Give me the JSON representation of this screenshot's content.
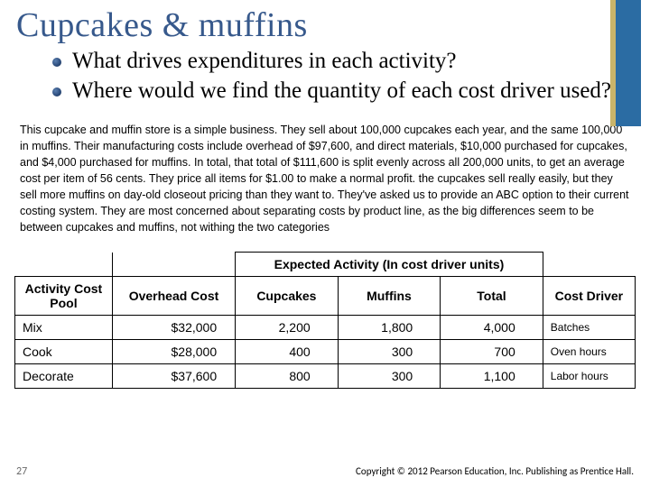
{
  "title": "Cupcakes & muffins",
  "bullets": {
    "b1": "What drives expenditures in each activity?",
    "b2": "Where would we find the quantity of each cost driver used?"
  },
  "paragraph": "This cupcake and muffin store is a simple business. They sell about 100,000 cupcakes each year, and the same 100,000 in muffins. Their manufacturing costs include overhead of $97,600, and direct materials, $10,000 purchased for cupcakes, and $4,000 purchased for muffins. In total, that total of $111,600 is split evenly across all 200,000 units, to get an average cost per item of 56 cents. They price all items for $1.00 to make a normal profit. the cupcakes sell really easily, but they sell more muffins on day-old closeout pricing than they want to. They've asked us to provide an ABC option to their current costing system. They are most concerned about separating costs by product line, as the big differences seem to be between cupcakes and muffins, not withing the two categories",
  "table": {
    "header_span": "Expected Activity (In cost driver units)",
    "cols": {
      "pool": "Activity Cost Pool",
      "oh": "Overhead Cost",
      "cup": "Cupcakes",
      "muf": "Muffins",
      "tot": "Total",
      "drv": "Cost Driver"
    },
    "rows": [
      {
        "pool": "Mix",
        "oh": "$32,000",
        "cup": "2,200",
        "muf": "1,800",
        "tot": "4,000",
        "drv": "Batches"
      },
      {
        "pool": "Cook",
        "oh": "$28,000",
        "cup": "400",
        "muf": "300",
        "tot": "700",
        "drv": "Oven hours"
      },
      {
        "pool": "Decorate",
        "oh": "$37,600",
        "cup": "800",
        "muf": "300",
        "tot": "1,100",
        "drv": "Labor hours"
      }
    ]
  },
  "footer": {
    "slide_num": "27",
    "copyright": "Copyright © 2012 Pearson Education, Inc. Publishing as Prentice Hall."
  },
  "style": {
    "title_color": "#37598c",
    "stripe_color": "#2b6ca3",
    "stripe_accent": "#c9b46a"
  }
}
